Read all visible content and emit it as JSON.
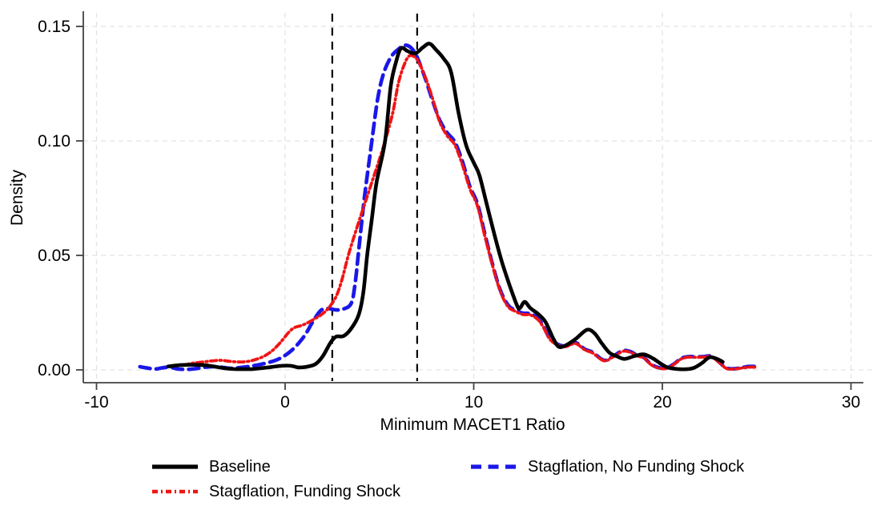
{
  "chart_data": {
    "type": "line",
    "title": "",
    "xlabel": "Minimum MACET1 Ratio",
    "ylabel": "Density",
    "xlim": [
      -10.7,
      30.7
    ],
    "ylim": [
      0,
      0.156
    ],
    "x_ticks": [
      -10,
      0,
      10,
      20,
      30
    ],
    "x_tick_labels": [
      "-10",
      "0",
      "10",
      "20",
      "30"
    ],
    "y_ticks": [
      0,
      0.05,
      0.1,
      0.15
    ],
    "y_tick_labels": [
      "0.00",
      "0.05",
      "0.10",
      "0.15"
    ],
    "grid": true,
    "grid_color": "#e3e3e3",
    "axis_color": "#424242",
    "legend_position": "bottom",
    "reference_lines": {
      "x_values": [
        2.5,
        7
      ],
      "color": "#000000",
      "style": "dashed"
    },
    "series": [
      {
        "name": "Baseline",
        "color": "#000000",
        "line_style": "solid",
        "points": [
          [
            -6.2,
            0.0015
          ],
          [
            -5.7,
            0.002
          ],
          [
            -5.2,
            0.0022
          ],
          [
            -4.7,
            0.0022
          ],
          [
            -4.2,
            0.002
          ],
          [
            -3.7,
            0.0014
          ],
          [
            -3.2,
            0.0007
          ],
          [
            -2.7,
            0.0004
          ],
          [
            -2.2,
            0.0003
          ],
          [
            -1.7,
            0.0004
          ],
          [
            -1.2,
            0.0008
          ],
          [
            -0.7,
            0.0013
          ],
          [
            -0.2,
            0.0018
          ],
          [
            0.3,
            0.0018
          ],
          [
            0.7,
            0.0011
          ],
          [
            1.1,
            0.0013
          ],
          [
            1.6,
            0.0025
          ],
          [
            2.0,
            0.006
          ],
          [
            2.4,
            0.0118
          ],
          [
            2.7,
            0.0145
          ],
          [
            3.1,
            0.0148
          ],
          [
            3.5,
            0.018
          ],
          [
            3.9,
            0.024
          ],
          [
            4.15,
            0.034
          ],
          [
            4.35,
            0.05
          ],
          [
            4.6,
            0.066
          ],
          [
            4.85,
            0.082
          ],
          [
            5.3,
            0.1
          ],
          [
            5.6,
            0.124
          ],
          [
            5.9,
            0.135
          ],
          [
            6.15,
            0.1405
          ],
          [
            6.5,
            0.1392
          ],
          [
            6.9,
            0.1382
          ],
          [
            7.3,
            0.1408
          ],
          [
            7.65,
            0.1425
          ],
          [
            8.0,
            0.1398
          ],
          [
            8.4,
            0.136
          ],
          [
            8.8,
            0.13
          ],
          [
            9.2,
            0.112
          ],
          [
            9.6,
            0.098
          ],
          [
            10.0,
            0.0905
          ],
          [
            10.3,
            0.085
          ],
          [
            10.7,
            0.072
          ],
          [
            11.1,
            0.059
          ],
          [
            11.5,
            0.047
          ],
          [
            11.9,
            0.037
          ],
          [
            12.3,
            0.028
          ],
          [
            12.45,
            0.027
          ],
          [
            12.7,
            0.0297
          ],
          [
            13.0,
            0.027
          ],
          [
            13.4,
            0.0245
          ],
          [
            13.8,
            0.021
          ],
          [
            14.2,
            0.014
          ],
          [
            14.5,
            0.0101
          ],
          [
            14.9,
            0.0108
          ],
          [
            15.4,
            0.0135
          ],
          [
            16.0,
            0.0175
          ],
          [
            16.4,
            0.016
          ],
          [
            16.8,
            0.0115
          ],
          [
            17.2,
            0.0075
          ],
          [
            17.6,
            0.0059
          ],
          [
            18.0,
            0.0048
          ],
          [
            18.5,
            0.006
          ],
          [
            19.0,
            0.0068
          ],
          [
            19.5,
            0.005
          ],
          [
            19.9,
            0.0028
          ],
          [
            20.3,
            0.001
          ],
          [
            20.8,
            0.0004
          ],
          [
            21.3,
            0.0003
          ],
          [
            21.7,
            0.001
          ],
          [
            22.1,
            0.003
          ],
          [
            22.5,
            0.0055
          ],
          [
            22.9,
            0.0048
          ],
          [
            23.2,
            0.0035
          ]
        ]
      },
      {
        "name": "Stagflation, No Funding Shock",
        "color": "#1a17e8",
        "line_style": "dashed",
        "points": [
          [
            -7.7,
            0.0014
          ],
          [
            -7.3,
            0.0008
          ],
          [
            -6.9,
            0.0004
          ],
          [
            -6.5,
            0.0009
          ],
          [
            -6.1,
            0.0012
          ],
          [
            -5.7,
            0.0004
          ],
          [
            -5.2,
            0.0002
          ],
          [
            -4.7,
            0.0006
          ],
          [
            -4.2,
            0.0012
          ],
          [
            -3.7,
            0.0014
          ],
          [
            -3.3,
            0.0011
          ],
          [
            -2.9,
            0.0007
          ],
          [
            -2.5,
            0.0009
          ],
          [
            -2.1,
            0.0013
          ],
          [
            -1.7,
            0.0018
          ],
          [
            -1.3,
            0.0024
          ],
          [
            -0.9,
            0.0032
          ],
          [
            -0.5,
            0.0042
          ],
          [
            -0.1,
            0.0058
          ],
          [
            0.3,
            0.0082
          ],
          [
            0.7,
            0.0115
          ],
          [
            1.1,
            0.0158
          ],
          [
            1.5,
            0.0215
          ],
          [
            1.9,
            0.026
          ],
          [
            2.3,
            0.0268
          ],
          [
            2.7,
            0.0262
          ],
          [
            3.1,
            0.0266
          ],
          [
            3.5,
            0.029
          ],
          [
            3.7,
            0.037
          ],
          [
            3.9,
            0.052
          ],
          [
            4.2,
            0.075
          ],
          [
            4.6,
            0.1
          ],
          [
            4.9,
            0.118
          ],
          [
            5.2,
            0.129
          ],
          [
            5.6,
            0.1365
          ],
          [
            6.0,
            0.14
          ],
          [
            6.35,
            0.1418
          ],
          [
            6.7,
            0.1405
          ],
          [
            7.0,
            0.1365
          ],
          [
            7.4,
            0.128
          ],
          [
            7.8,
            0.118
          ],
          [
            8.2,
            0.109
          ],
          [
            8.6,
            0.1035
          ],
          [
            9.0,
            0.0995
          ],
          [
            9.4,
            0.091
          ],
          [
            9.8,
            0.08
          ],
          [
            10.2,
            0.0725
          ],
          [
            10.6,
            0.059
          ],
          [
            11.0,
            0.046
          ],
          [
            11.4,
            0.035
          ],
          [
            11.8,
            0.0285
          ],
          [
            12.2,
            0.026
          ],
          [
            12.6,
            0.0248
          ],
          [
            13.0,
            0.0245
          ],
          [
            13.4,
            0.0225
          ],
          [
            13.7,
            0.019
          ],
          [
            14.05,
            0.0136
          ],
          [
            14.5,
            0.011
          ],
          [
            14.9,
            0.0105
          ],
          [
            15.4,
            0.0119
          ],
          [
            15.9,
            0.009
          ],
          [
            16.3,
            0.0077
          ],
          [
            16.9,
            0.0042
          ],
          [
            17.4,
            0.006
          ],
          [
            17.9,
            0.0084
          ],
          [
            18.3,
            0.008
          ],
          [
            18.7,
            0.0062
          ],
          [
            19.0,
            0.0055
          ],
          [
            19.4,
            0.0025
          ],
          [
            19.8,
            0.001
          ],
          [
            20.2,
            0.0008
          ],
          [
            20.6,
            0.0025
          ],
          [
            21.0,
            0.005
          ],
          [
            21.4,
            0.0058
          ],
          [
            21.8,
            0.0057
          ],
          [
            22.2,
            0.0058
          ],
          [
            22.6,
            0.006
          ],
          [
            23.0,
            0.0035
          ],
          [
            23.4,
            0.0008
          ],
          [
            23.8,
            0.0005
          ],
          [
            24.2,
            0.001
          ],
          [
            24.6,
            0.0015
          ],
          [
            24.9,
            0.0015
          ]
        ]
      },
      {
        "name": "Stagflation, Funding Shock",
        "color": "#f01414",
        "line_style": "dash-dot",
        "points": [
          [
            -5.4,
            0.002
          ],
          [
            -5.0,
            0.0028
          ],
          [
            -4.6,
            0.0032
          ],
          [
            -4.2,
            0.0036
          ],
          [
            -3.8,
            0.004
          ],
          [
            -3.4,
            0.0042
          ],
          [
            -3.0,
            0.0038
          ],
          [
            -2.6,
            0.0035
          ],
          [
            -2.2,
            0.0035
          ],
          [
            -1.8,
            0.004
          ],
          [
            -1.4,
            0.005
          ],
          [
            -1.0,
            0.0065
          ],
          [
            -0.6,
            0.009
          ],
          [
            -0.2,
            0.0125
          ],
          [
            0.2,
            0.0165
          ],
          [
            0.5,
            0.0185
          ],
          [
            0.8,
            0.0192
          ],
          [
            1.1,
            0.0202
          ],
          [
            1.5,
            0.022
          ],
          [
            1.9,
            0.024
          ],
          [
            2.3,
            0.027
          ],
          [
            2.7,
            0.032
          ],
          [
            3.0,
            0.039
          ],
          [
            3.35,
            0.05
          ],
          [
            3.8,
            0.062
          ],
          [
            4.2,
            0.072
          ],
          [
            4.6,
            0.082
          ],
          [
            5.0,
            0.092
          ],
          [
            5.3,
            0.1
          ],
          [
            5.7,
            0.112
          ],
          [
            6.0,
            0.125
          ],
          [
            6.3,
            0.133
          ],
          [
            6.6,
            0.1372
          ],
          [
            7.0,
            0.1355
          ],
          [
            7.4,
            0.1285
          ],
          [
            7.8,
            0.119
          ],
          [
            8.2,
            0.1082
          ],
          [
            8.6,
            0.1022
          ],
          [
            9.0,
            0.0982
          ],
          [
            9.4,
            0.0895
          ],
          [
            9.8,
            0.079
          ],
          [
            10.2,
            0.0715
          ],
          [
            10.6,
            0.058
          ],
          [
            11.0,
            0.0455
          ],
          [
            11.4,
            0.0345
          ],
          [
            11.8,
            0.0278
          ],
          [
            12.2,
            0.0256
          ],
          [
            12.6,
            0.0242
          ],
          [
            13.0,
            0.024
          ],
          [
            13.4,
            0.022
          ],
          [
            13.7,
            0.0185
          ],
          [
            14.05,
            0.0132
          ],
          [
            14.5,
            0.0107
          ],
          [
            14.9,
            0.0102
          ],
          [
            15.4,
            0.0115
          ],
          [
            15.9,
            0.0087
          ],
          [
            16.3,
            0.0074
          ],
          [
            16.9,
            0.004
          ],
          [
            17.4,
            0.0057
          ],
          [
            17.9,
            0.0081
          ],
          [
            18.3,
            0.0077
          ],
          [
            18.7,
            0.006
          ],
          [
            19.0,
            0.0053
          ],
          [
            19.4,
            0.0023
          ],
          [
            19.8,
            0.0008
          ],
          [
            20.2,
            0.0006
          ],
          [
            20.6,
            0.0023
          ],
          [
            21.0,
            0.0048
          ],
          [
            21.4,
            0.0056
          ],
          [
            21.8,
            0.0055
          ],
          [
            22.2,
            0.0056
          ],
          [
            22.6,
            0.0058
          ],
          [
            23.0,
            0.0033
          ],
          [
            23.4,
            0.0006
          ],
          [
            23.8,
            0.0004
          ],
          [
            24.2,
            0.0008
          ],
          [
            24.6,
            0.0012
          ],
          [
            24.9,
            0.0012
          ]
        ]
      }
    ]
  }
}
